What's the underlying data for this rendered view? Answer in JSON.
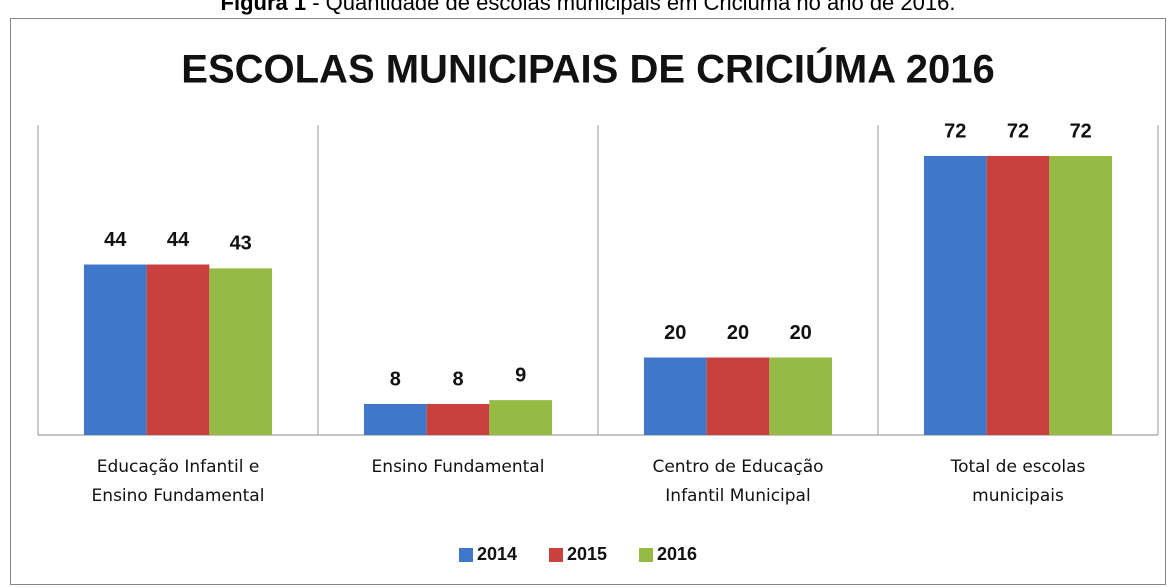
{
  "caption_label": "Figura 1",
  "caption_text": " - Quantidade de escolas municipais em Criciúma no ano de 2016.",
  "chart_data": {
    "type": "bar",
    "title": "ESCOLAS MUNICIPAIS DE CRICIÚMA 2016",
    "categories": [
      "Educação Infantil e Ensino Fundamental",
      "Ensino Fundamental",
      "Centro de Educação Infantil Municipal",
      "Total de escolas municipais"
    ],
    "series": [
      {
        "name": "2014",
        "color": "#3f78c8",
        "values": [
          44,
          8,
          20,
          72
        ]
      },
      {
        "name": "2015",
        "color": "#c9403c",
        "values": [
          44,
          8,
          20,
          72
        ]
      },
      {
        "name": "2016",
        "color": "#95bb44",
        "values": [
          43,
          9,
          20,
          72
        ]
      }
    ],
    "ylim": [
      0,
      80
    ],
    "legend": "bottom"
  }
}
